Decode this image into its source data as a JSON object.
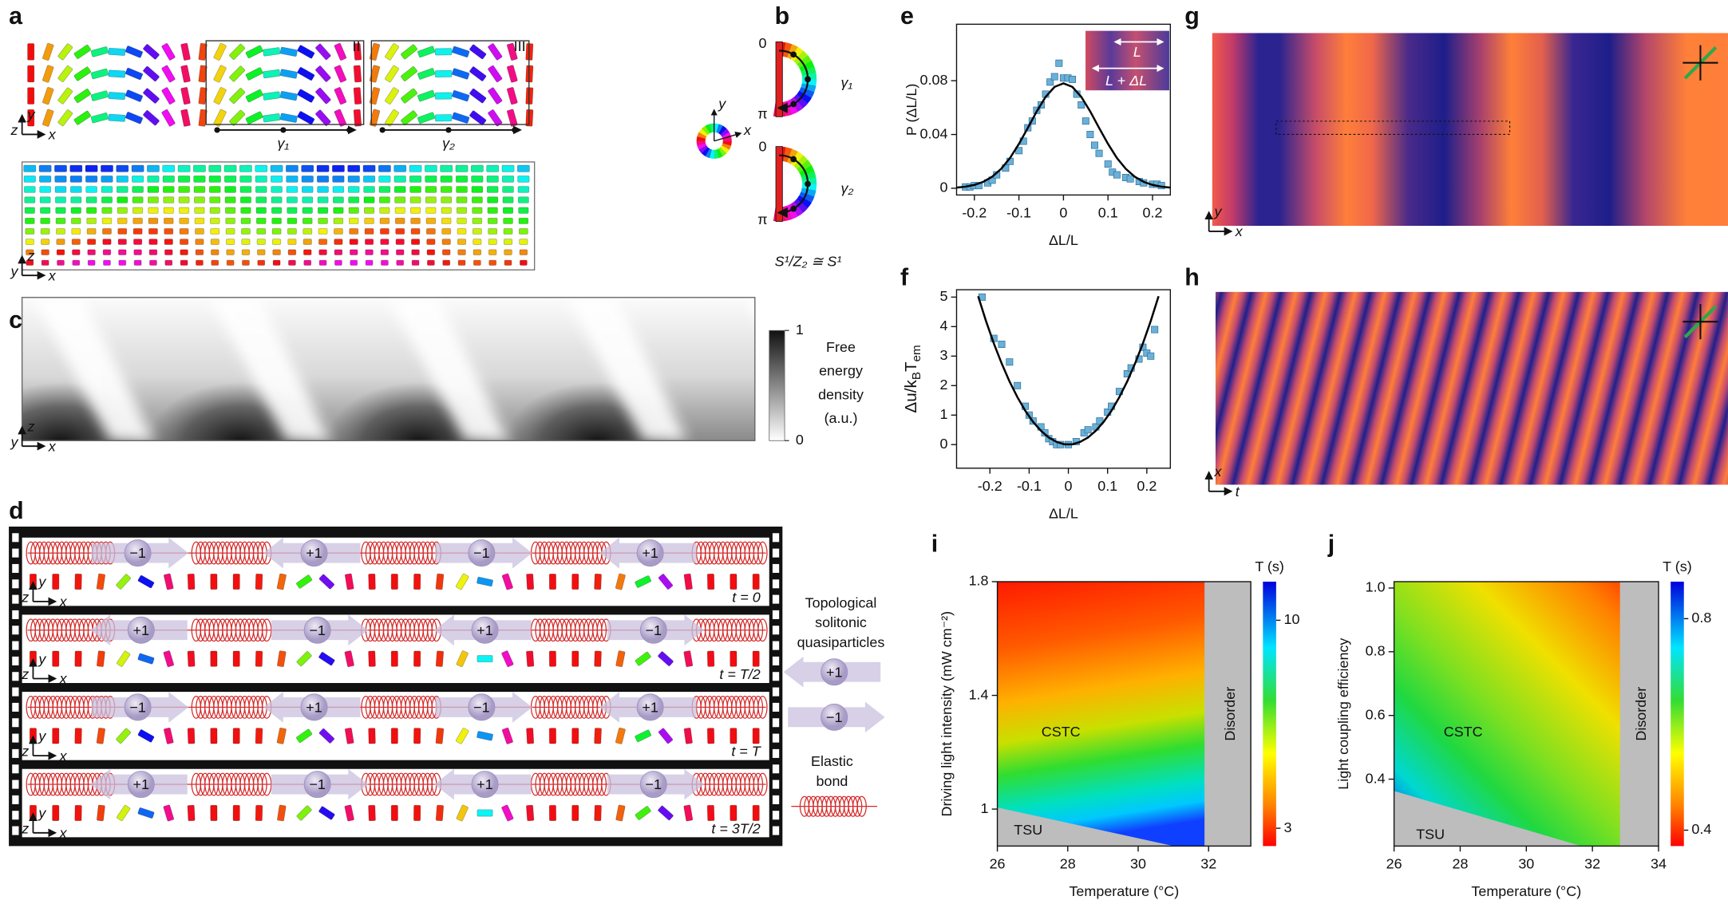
{
  "panel_labels": [
    "a",
    "b",
    "c",
    "d",
    "e",
    "f",
    "g",
    "h",
    "i",
    "j"
  ],
  "panel_a": {
    "axes_top": [
      "y",
      "z",
      "x"
    ],
    "box_labels": [
      "II",
      "III"
    ],
    "path_labels": [
      "γ₁",
      "γ₂"
    ],
    "axes_bottom": [
      "z",
      "y",
      "x"
    ]
  },
  "panel_b": {
    "endpoints": [
      "0",
      "π",
      "0",
      "π"
    ],
    "path_labels": [
      "γ₁",
      "γ₂"
    ],
    "wheel_axes": [
      "y",
      "x"
    ],
    "formula": "S¹/Z₂ ≅ S¹"
  },
  "panel_c": {
    "axes": [
      "z",
      "y",
      "x"
    ],
    "colorbar_title": [
      "Free",
      "energy",
      "density",
      "(a.u.)"
    ],
    "colorbar_lim": [
      0,
      1
    ],
    "colorbar_ticks": [
      0,
      1
    ]
  },
  "panel_d": {
    "rows": [
      {
        "charges": [
          "−1",
          "+1",
          "−1",
          "+1"
        ],
        "axes": [
          "y",
          "z",
          "x"
        ],
        "time": "t = 0"
      },
      {
        "charges": [
          "+1",
          "−1",
          "+1",
          "−1"
        ],
        "axes": [
          "y",
          "z",
          "x"
        ],
        "time": "t = T/2"
      },
      {
        "charges": [
          "−1",
          "+1",
          "−1",
          "+1"
        ],
        "axes": [
          "y",
          "z",
          "x"
        ],
        "time": "t = T"
      },
      {
        "charges": [
          "+1",
          "−1",
          "+1",
          "−1"
        ],
        "axes": [
          "y",
          "z",
          "x"
        ],
        "time": "t = 3T/2"
      }
    ],
    "legend": {
      "title": [
        "Topological",
        "solitonic",
        "quasiparticles"
      ],
      "charges": [
        "+1",
        "−1"
      ],
      "bond": [
        "Elastic",
        "bond"
      ]
    }
  },
  "panel_e_inset": [
    "L",
    "L + ΔL"
  ],
  "panel_g": {
    "axes": [
      "y",
      "x"
    ]
  },
  "panel_h": {
    "axes": [
      "x",
      "t"
    ]
  },
  "chart_data": [
    {
      "type": "scatter",
      "xlabel": "ΔL/L",
      "ylabel": "P (ΔL/L)",
      "xlim": [
        -0.24,
        0.24
      ],
      "ylim": [
        -0.005,
        0.122
      ],
      "xticks": [
        -0.2,
        -0.1,
        0,
        0.1,
        0.2
      ],
      "yticks": [
        0,
        0.04,
        0.08
      ],
      "series": [
        {
          "type": "scatter",
          "color": "#6ab0d8",
          "x": [
            -0.22,
            -0.21,
            -0.2,
            -0.19,
            -0.17,
            -0.16,
            -0.15,
            -0.13,
            -0.12,
            -0.1,
            -0.09,
            -0.08,
            -0.07,
            -0.06,
            -0.05,
            -0.04,
            -0.03,
            -0.02,
            -0.01,
            0,
            0.01,
            0.02,
            0.03,
            0.04,
            0.05,
            0.06,
            0.07,
            0.08,
            0.1,
            0.11,
            0.12,
            0.14,
            0.15,
            0.17,
            0.18,
            0.2,
            0.21,
            0.22
          ],
          "values": [
            0.001,
            0.001,
            0.002,
            0.002,
            0.004,
            0.006,
            0.01,
            0.015,
            0.02,
            0.028,
            0.035,
            0.045,
            0.05,
            0.058,
            0.062,
            0.07,
            0.079,
            0.083,
            0.093,
            0.082,
            0.082,
            0.081,
            0.07,
            0.062,
            0.05,
            0.04,
            0.032,
            0.026,
            0.018,
            0.012,
            0.01,
            0.008,
            0.007,
            0.005,
            0.004,
            0.003,
            0.003,
            0.002
          ]
        },
        {
          "type": "line",
          "color": "#000000",
          "x": [
            -0.24,
            -0.22,
            -0.2,
            -0.18,
            -0.16,
            -0.14,
            -0.12,
            -0.1,
            -0.08,
            -0.06,
            -0.04,
            -0.02,
            0,
            0.02,
            0.04,
            0.06,
            0.08,
            0.1,
            0.12,
            0.14,
            0.16,
            0.18,
            0.2,
            0.22,
            0.24
          ],
          "values": [
            0.0005,
            0.0012,
            0.0025,
            0.0048,
            0.0086,
            0.0144,
            0.0225,
            0.033,
            0.0449,
            0.0572,
            0.068,
            0.0754,
            0.078,
            0.0754,
            0.068,
            0.0572,
            0.0449,
            0.033,
            0.0225,
            0.0144,
            0.0086,
            0.0048,
            0.0025,
            0.0012,
            0.0005
          ]
        }
      ]
    },
    {
      "type": "scatter",
      "xlabel": "ΔL/L",
      "ylabel": [
        "Δu/k",
        "B",
        "T",
        "em"
      ],
      "xlim": [
        -0.285,
        0.26
      ],
      "ylim": [
        -0.8,
        5.25
      ],
      "xticks": [
        -0.2,
        -0.1,
        0,
        0.1,
        0.2
      ],
      "yticks": [
        0,
        1,
        2,
        3,
        4,
        5
      ],
      "series": [
        {
          "type": "scatter",
          "color": "#6ab0d8",
          "x": [
            -0.22,
            -0.19,
            -0.17,
            -0.15,
            -0.13,
            -0.11,
            -0.1,
            -0.09,
            -0.07,
            -0.06,
            -0.05,
            -0.04,
            -0.03,
            -0.02,
            0,
            0.02,
            0.04,
            0.05,
            0.07,
            0.08,
            0.1,
            0.11,
            0.13,
            0.15,
            0.16,
            0.18,
            0.19,
            0.2,
            0.21,
            0.22
          ],
          "values": [
            5.0,
            3.6,
            3.4,
            2.8,
            2.0,
            1.3,
            1.0,
            0.8,
            0.6,
            0.4,
            0.2,
            0.1,
            0.0,
            0.0,
            0.0,
            0.1,
            0.4,
            0.5,
            0.6,
            0.8,
            1.1,
            1.3,
            1.8,
            2.4,
            2.6,
            2.9,
            3.3,
            3.1,
            3.0,
            3.9
          ]
        },
        {
          "type": "line",
          "color": "#000000",
          "x": [
            -0.23,
            -0.21,
            -0.19,
            -0.17,
            -0.15,
            -0.13,
            -0.11,
            -0.09,
            -0.07,
            -0.05,
            -0.03,
            -0.01,
            0.01,
            0.03,
            0.05,
            0.07,
            0.09,
            0.11,
            0.13,
            0.15,
            0.17,
            0.19,
            0.21,
            0.23
          ],
          "values": [
            5.03,
            4.19,
            3.43,
            2.75,
            2.14,
            1.61,
            1.15,
            0.77,
            0.47,
            0.24,
            0.09,
            0.01,
            0.01,
            0.09,
            0.24,
            0.47,
            0.77,
            1.15,
            1.61,
            2.14,
            2.75,
            3.43,
            4.19,
            5.03
          ]
        }
      ]
    },
    {
      "type": "heatmap",
      "xlabel": "Temperature (°C)",
      "ylabel": "Driving light intensity (mW cm⁻²)",
      "xlim": [
        26,
        33.2
      ],
      "ylim": [
        0.87,
        1.8
      ],
      "xticks": [
        26,
        28,
        30,
        32
      ],
      "yticks": [
        1,
        1.4,
        1.8
      ],
      "regions": [
        "CSTC",
        "TSU",
        "Disorder"
      ],
      "colorbar": {
        "title": "T (s)",
        "lim": [
          2.4,
          11.3
        ],
        "ticks": [
          3,
          10
        ]
      }
    },
    {
      "type": "heatmap",
      "xlabel": "Temperature (°C)",
      "ylabel": "Light coupling efficiency",
      "xlim": [
        26,
        34
      ],
      "ylim": [
        0.19,
        1.02
      ],
      "xticks": [
        26,
        28,
        30,
        32,
        34
      ],
      "yticks": [
        0.4,
        0.6,
        0.8,
        {
          "value": 1,
          "label": "1.0"
        }
      ],
      "regions": [
        "CSTC",
        "TSU",
        "Disorder"
      ],
      "colorbar": {
        "title": "T (s)",
        "lim": [
          0.37,
          0.87
        ],
        "ticks": [
          0.4,
          0.8
        ]
      }
    }
  ]
}
